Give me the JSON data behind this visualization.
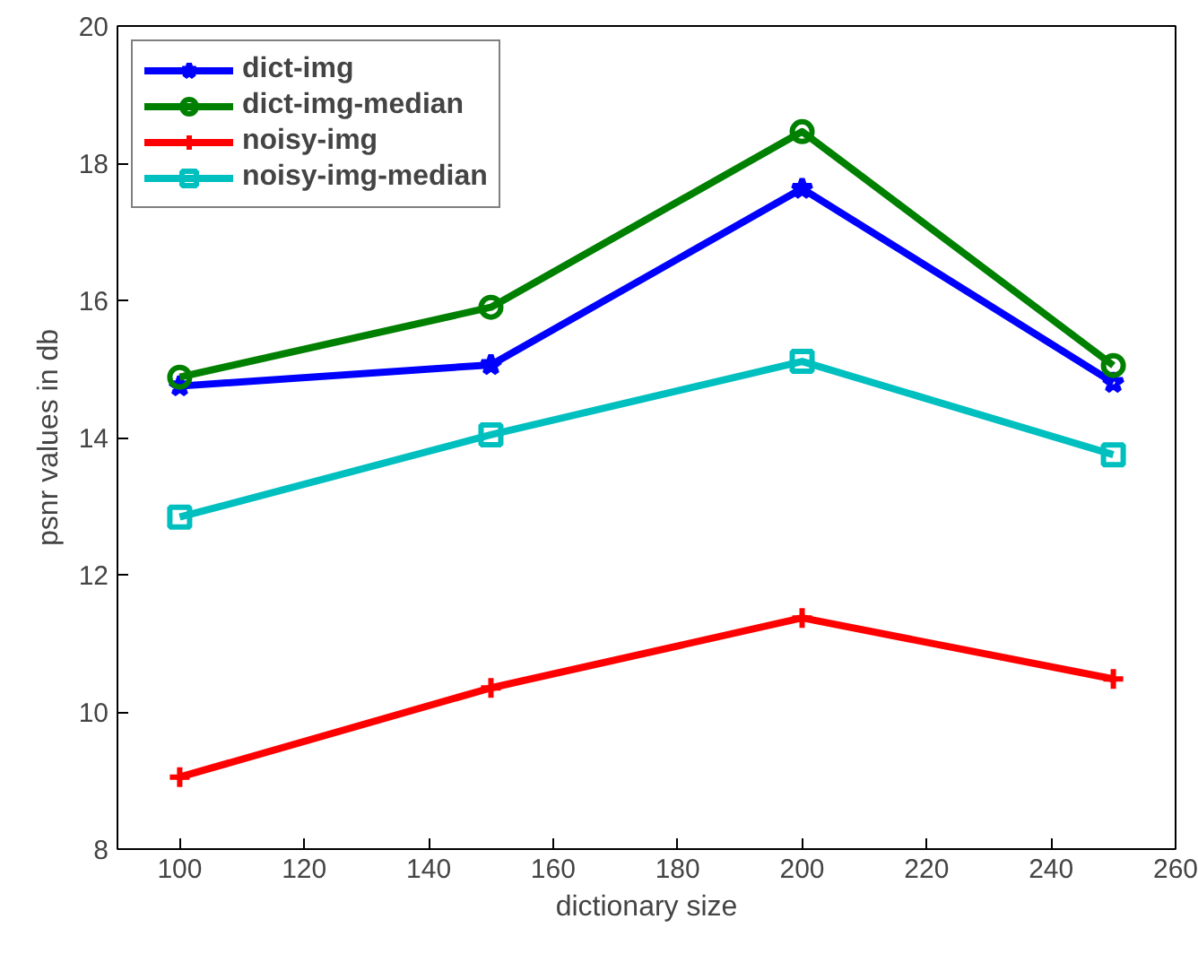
{
  "chart_data": {
    "type": "line",
    "xlabel": "dictionary size",
    "ylabel": "psnr values in db",
    "x": [
      100,
      150,
      200,
      250
    ],
    "xlim": [
      90,
      260
    ],
    "xticks": [
      100,
      120,
      140,
      160,
      180,
      200,
      220,
      240,
      260
    ],
    "ylim": [
      8,
      20
    ],
    "yticks": [
      8,
      10,
      12,
      14,
      16,
      18,
      20
    ],
    "grid": false,
    "legend": "top left",
    "line_style": "solid",
    "series": [
      {
        "name": "dict-img",
        "color": "#0000ff",
        "marker": "star",
        "values": [
          14.75,
          15.06,
          17.63,
          14.8
        ]
      },
      {
        "name": "dict-img-median",
        "color": "#008000",
        "marker": "circle",
        "values": [
          14.88,
          15.9,
          18.46,
          15.05
        ]
      },
      {
        "name": "noisy-img",
        "color": "#ff0000",
        "marker": "cross",
        "values": [
          9.05,
          10.35,
          11.37,
          10.48
        ]
      },
      {
        "name": "noisy-img-median",
        "color": "#00bfbf",
        "marker": "square",
        "values": [
          12.84,
          14.04,
          15.11,
          13.75
        ]
      }
    ]
  }
}
